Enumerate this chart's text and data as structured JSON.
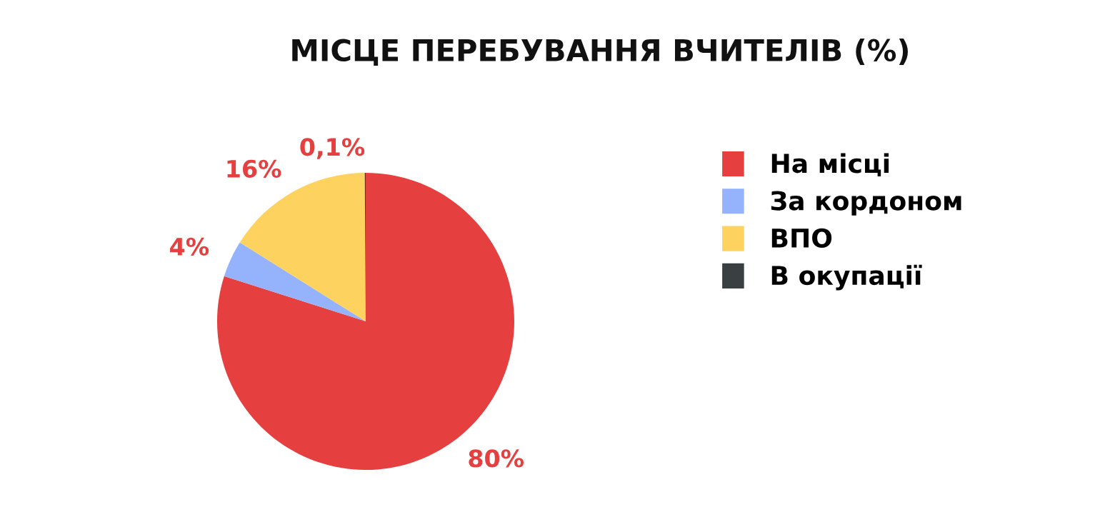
{
  "chart_data": {
    "type": "pie",
    "title": "МІСЦЕ ПЕРЕБУВАННЯ ВЧИТЕЛІВ (%)",
    "categories": [
      "На місці",
      "За кордоном",
      "ВПО",
      "В окупації"
    ],
    "values": [
      80,
      4,
      16,
      0.1
    ],
    "colors": [
      "#e5403f",
      "#94b3fc",
      "#fdd25e",
      "#3a3f42"
    ],
    "value_labels": [
      "80%",
      "4%",
      "16%",
      "0,1%"
    ],
    "legend": "right"
  }
}
